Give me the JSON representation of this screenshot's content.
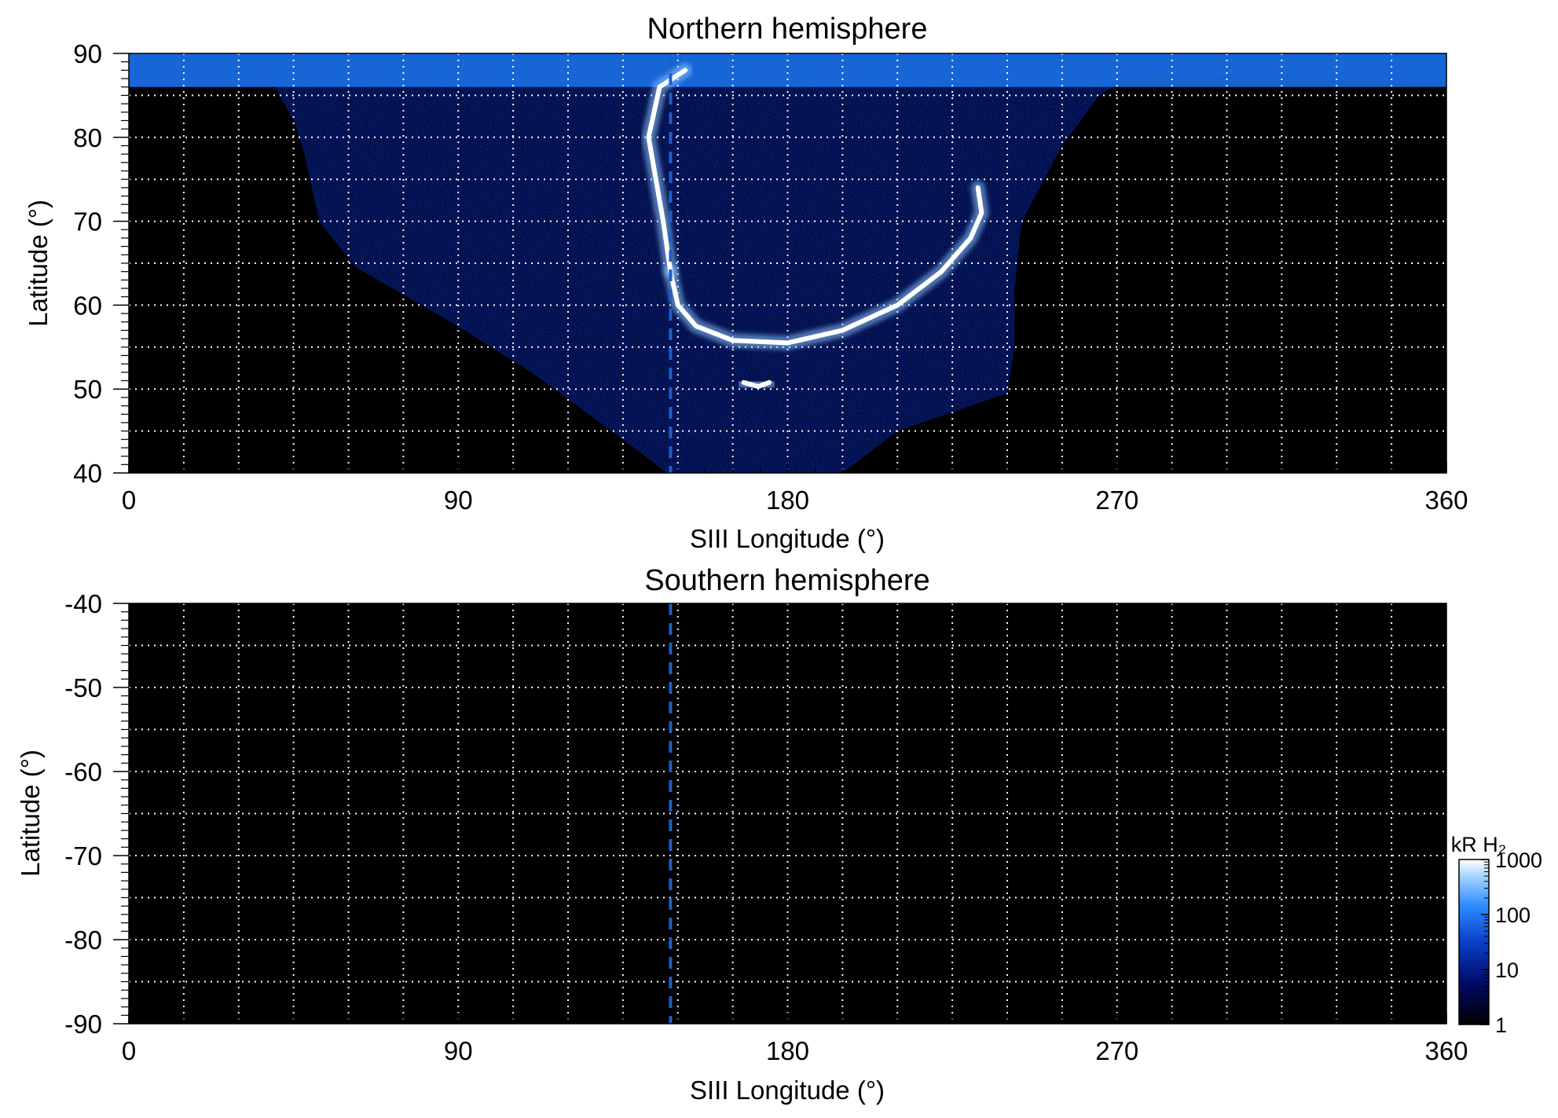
{
  "chart_data": [
    {
      "type": "heatmap",
      "title": "Northern hemisphere",
      "xlabel": "SIII Longitude (°)",
      "ylabel": "Latitude (°)",
      "xlim": [
        0,
        360
      ],
      "ylim": [
        40,
        90
      ],
      "xticks": [
        0,
        90,
        180,
        270,
        360
      ],
      "xtick_labels": [
        "0",
        "90",
        "180",
        "270",
        "360"
      ],
      "yticks": [
        40,
        50,
        60,
        70,
        80,
        90
      ],
      "ytick_labels": [
        "40",
        "50",
        "60",
        "70",
        "80",
        "90"
      ],
      "grid": true,
      "grid_x_step": 15,
      "grid_y_step": 5,
      "reference_line_longitude": 148,
      "colorscale": "log",
      "main_oval": [
        [
          148,
          64
        ],
        [
          150,
          60
        ],
        [
          155,
          57.5
        ],
        [
          165,
          55.8
        ],
        [
          180,
          55.5
        ],
        [
          195,
          57
        ],
        [
          210,
          60
        ],
        [
          222,
          64
        ],
        [
          230,
          68
        ],
        [
          233,
          71
        ],
        [
          232,
          74
        ]
      ],
      "oval_dawn_arc": [
        [
          148,
          64
        ],
        [
          146,
          70
        ],
        [
          144,
          75
        ],
        [
          142,
          80
        ],
        [
          145,
          86
        ],
        [
          152,
          88
        ]
      ],
      "footprint_feature": [
        [
          168,
          50.8
        ],
        [
          172,
          50.3
        ],
        [
          175,
          50.8
        ]
      ],
      "emission_region_boundary_west": [
        [
          147,
          40
        ],
        [
          135,
          44
        ],
        [
          110,
          52
        ],
        [
          88,
          58
        ],
        [
          62,
          64.5
        ],
        [
          52,
          70
        ],
        [
          48,
          78
        ],
        [
          45,
          82
        ],
        [
          40,
          86
        ]
      ],
      "emission_region_boundary_east": [
        [
          195,
          40
        ],
        [
          210,
          45
        ],
        [
          240,
          49.5
        ],
        [
          242,
          55
        ],
        [
          242,
          62
        ],
        [
          244,
          70
        ],
        [
          255,
          79
        ],
        [
          265,
          85
        ],
        [
          275,
          87.5
        ]
      ]
    },
    {
      "type": "heatmap",
      "title": "Southern hemisphere",
      "xlabel": "SIII Longitude (°)",
      "ylabel": "Latitude (°)",
      "xlim": [
        0,
        360
      ],
      "ylim": [
        -90,
        -40
      ],
      "xticks": [
        0,
        90,
        180,
        270,
        360
      ],
      "xtick_labels": [
        "0",
        "90",
        "180",
        "270",
        "360"
      ],
      "yticks": [
        -40,
        -50,
        -60,
        -70,
        -80,
        -90
      ],
      "ytick_labels": [
        "-40",
        "-50",
        "-60",
        "-70",
        "-80",
        "-90"
      ],
      "grid": true,
      "grid_x_step": 15,
      "grid_y_step": 5,
      "reference_line_longitude": 148,
      "emission": "none"
    }
  ],
  "colorbar": {
    "label": "kR H₂",
    "scale": "log",
    "range": [
      1,
      1000
    ],
    "ticks": [
      1,
      10,
      100,
      1000
    ],
    "tick_labels": [
      "1",
      "10",
      "100",
      "1000"
    ],
    "colors": [
      "#000000",
      "#000a66",
      "#0a3fc8",
      "#2b8cff",
      "#a8d4ff",
      "#ffffff"
    ]
  },
  "colors": {
    "background": "#000000",
    "grid": "#ffffff",
    "reference_line": "#1e5fc8",
    "emission_low": "#061a6e",
    "emission_mid": "#1a6fe6",
    "emission_high": "#ffffff"
  }
}
